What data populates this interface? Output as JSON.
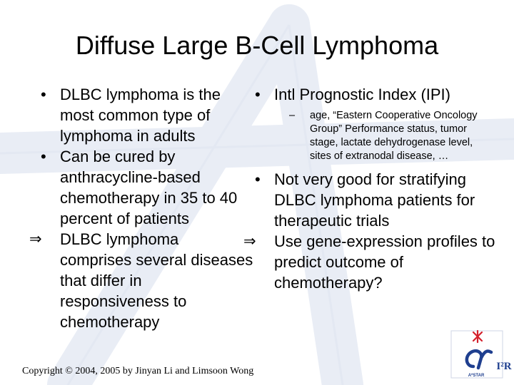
{
  "slide": {
    "title": "Diffuse Large B-Cell Lymphoma",
    "left_column": [
      {
        "marker": "•",
        "text": "DLBC lymphoma is the most common type of lymphoma in adults"
      },
      {
        "marker": "•",
        "text": "Can be cured by anthracycline-based chemotherapy in 35 to 40 percent of patients"
      },
      {
        "marker": "⇒",
        "text": "DLBC lymphoma comprises several diseases that differ in responsiveness to chemotherapy"
      }
    ],
    "right_column": {
      "ipi": {
        "marker": "•",
        "text": "Intl Prognostic Index (IPI)"
      },
      "ipi_sub": {
        "marker": "–",
        "text": "age, “Eastern Cooperative Oncology Group” Performance status, tumor stage, lactate dehydrogenase level, sites of extranodal disease, …"
      },
      "not_good": {
        "marker": "•",
        "text": "Not very good for stratifying DLBC lymphoma patients for therapeutic trials"
      },
      "use_gene": {
        "marker": "⇒",
        "text": "Use gene-expression profiles to predict outcome of chemotherapy?"
      }
    },
    "footer": "Copyright © 2004, 2005 by Jinyan Li and Limsoon Wong",
    "logo": {
      "text": "I²R",
      "subtext": "A*STAR",
      "primary_color": "#1f3f8f",
      "accent_color": "#d4202c"
    }
  }
}
